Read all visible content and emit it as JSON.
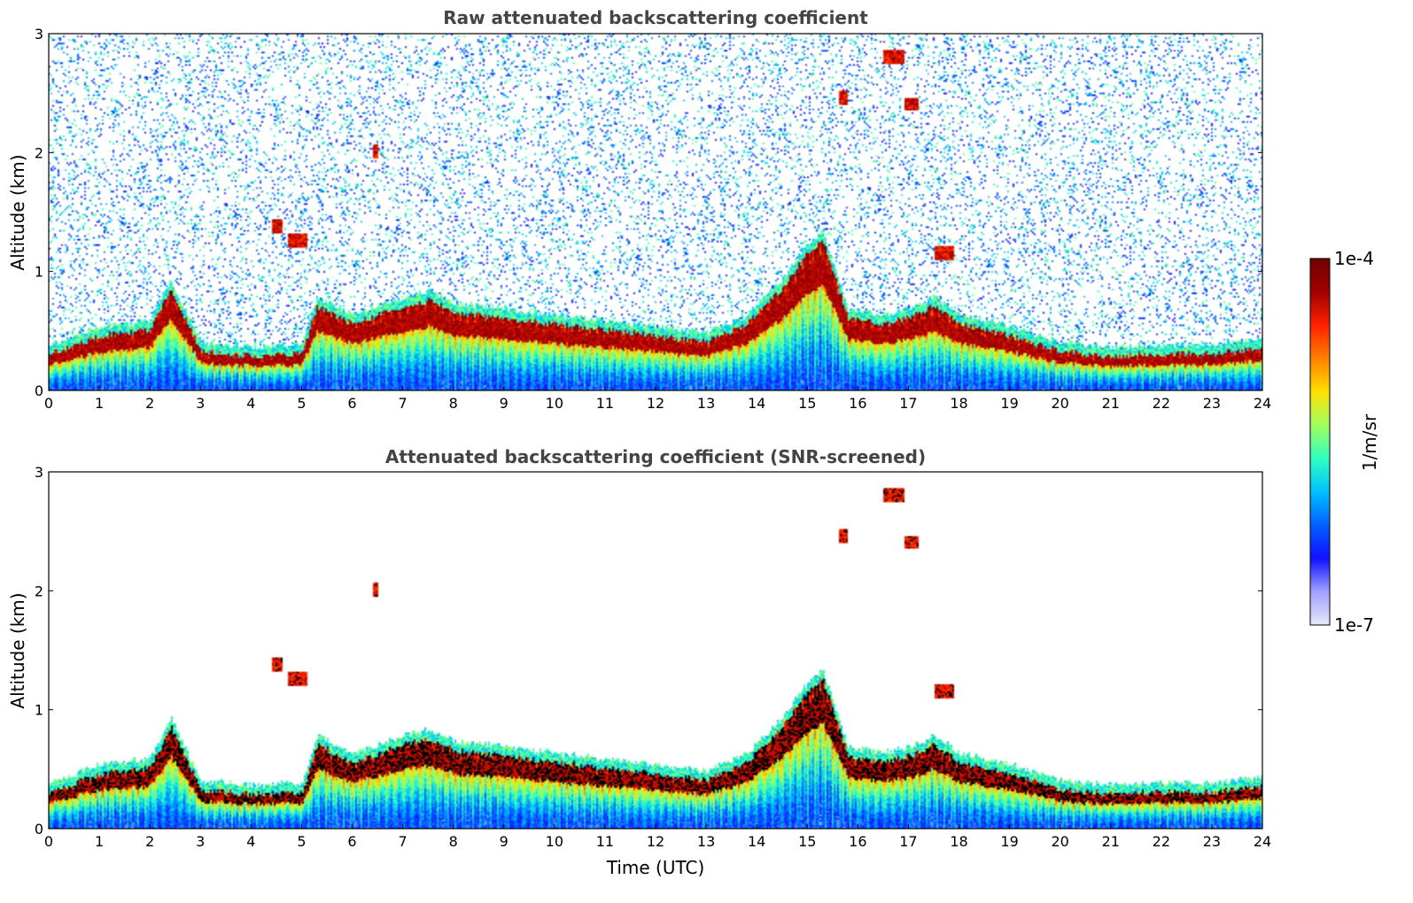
{
  "chart_data": [
    {
      "type": "heatmap",
      "title": "Raw attenuated backscattering coefficient",
      "xlabel": "",
      "ylabel": "Altitude (km)",
      "xlim": [
        0,
        24
      ],
      "ylim": [
        0,
        3
      ],
      "xticks": [
        "0",
        "1",
        "2",
        "3",
        "4",
        "5",
        "6",
        "7",
        "8",
        "9",
        "10",
        "11",
        "12",
        "13",
        "14",
        "15",
        "16",
        "17",
        "18",
        "19",
        "20",
        "21",
        "22",
        "23",
        "24"
      ],
      "yticks": [
        "0",
        "1",
        "2",
        "3"
      ],
      "noise_level": 0.75
    },
    {
      "type": "heatmap",
      "title": "Attenuated backscattering coefficient (SNR-screened)",
      "xlabel": "Time (UTC)",
      "ylabel": "Altitude (km)",
      "xlim": [
        0,
        24
      ],
      "ylim": [
        0,
        3
      ],
      "xticks": [
        "0",
        "1",
        "2",
        "3",
        "4",
        "5",
        "6",
        "7",
        "8",
        "9",
        "10",
        "11",
        "12",
        "13",
        "14",
        "15",
        "16",
        "17",
        "18",
        "19",
        "20",
        "21",
        "22",
        "23",
        "24"
      ],
      "yticks": [
        "0",
        "1",
        "2",
        "3"
      ],
      "noise_level": 0
    }
  ],
  "colorbar": {
    "label": "1/m/sr",
    "max_label": "1e-4",
    "min_label": "1e-7",
    "colors": [
      "#e8e8f8",
      "#a0a0ff",
      "#1010ff",
      "#0060ff",
      "#00c0ff",
      "#30ffc0",
      "#a0ff60",
      "#ffe000",
      "#ff8000",
      "#ff2000",
      "#a00000",
      "#700000"
    ]
  },
  "features": {
    "boundary_layer_top_km": [
      [
        0,
        0.3
      ],
      [
        1,
        0.45
      ],
      [
        2,
        0.5
      ],
      [
        2.4,
        0.85
      ],
      [
        3,
        0.32
      ],
      [
        4,
        0.28
      ],
      [
        5,
        0.3
      ],
      [
        5.3,
        0.7
      ],
      [
        6,
        0.55
      ],
      [
        7,
        0.7
      ],
      [
        7.5,
        0.75
      ],
      [
        8,
        0.65
      ],
      [
        9,
        0.6
      ],
      [
        10,
        0.55
      ],
      [
        11,
        0.5
      ],
      [
        12,
        0.45
      ],
      [
        13,
        0.4
      ],
      [
        13.8,
        0.55
      ],
      [
        14.5,
        0.85
      ],
      [
        15,
        1.15
      ],
      [
        15.3,
        1.25
      ],
      [
        15.8,
        0.6
      ],
      [
        16.5,
        0.55
      ],
      [
        17,
        0.6
      ],
      [
        17.5,
        0.7
      ],
      [
        18,
        0.55
      ],
      [
        19,
        0.45
      ],
      [
        20,
        0.32
      ],
      [
        21,
        0.28
      ],
      [
        22,
        0.3
      ],
      [
        23,
        0.3
      ],
      [
        24,
        0.35
      ]
    ],
    "elevated_layers": [
      {
        "t0": 4.4,
        "t1": 4.6,
        "z": 1.38
      },
      {
        "t0": 4.7,
        "t1": 5.1,
        "z": 1.25
      },
      {
        "t0": 6.4,
        "t1": 6.5,
        "z": 2.0
      },
      {
        "t0": 15.6,
        "t1": 15.8,
        "z": 2.45
      },
      {
        "t0": 16.5,
        "t1": 16.9,
        "z": 2.8
      },
      {
        "t0": 16.9,
        "t1": 17.2,
        "z": 2.4
      },
      {
        "t0": 17.5,
        "t1": 17.9,
        "z": 1.15
      }
    ]
  }
}
